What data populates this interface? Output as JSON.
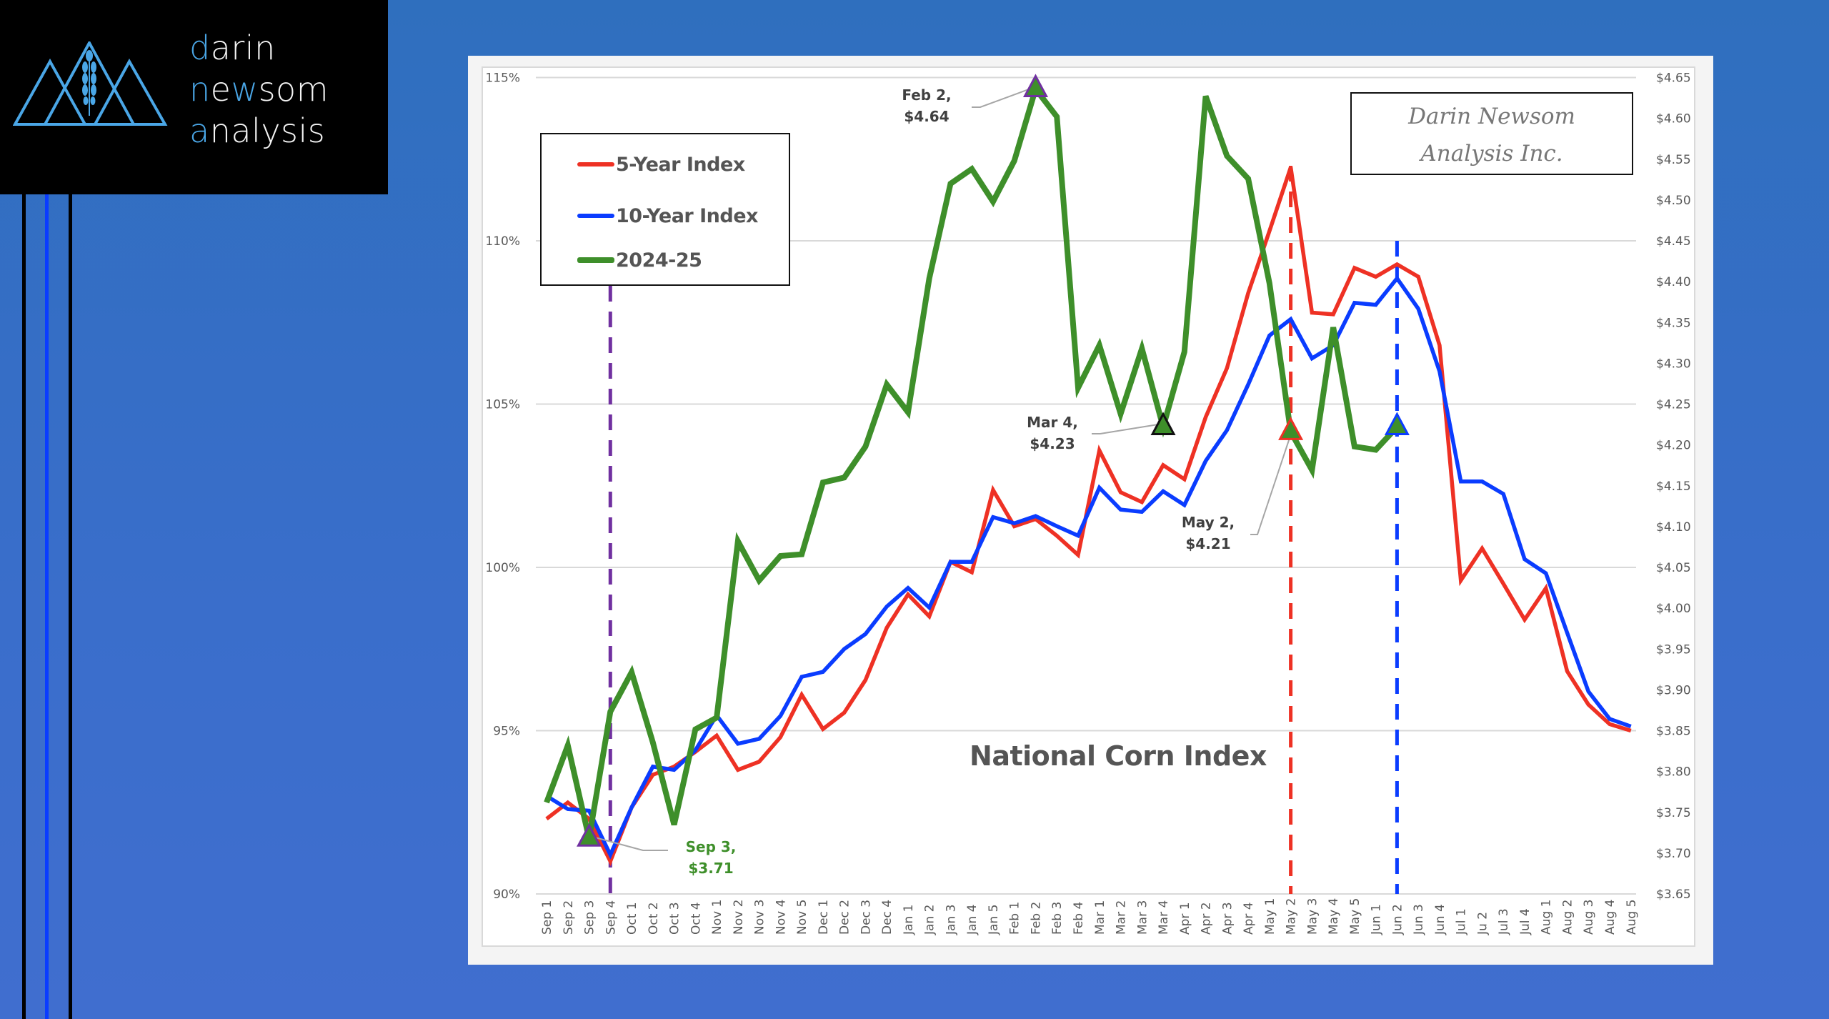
{
  "logo": {
    "line1": {
      "accent": "d",
      "rest": "arin"
    },
    "line2": {
      "accent1": "n",
      "mid1": "e",
      "accent2": "w",
      "rest": "som"
    },
    "line3": {
      "accent": "a",
      "rest": "nalysis"
    },
    "colors": {
      "accent": "#4aa6e6",
      "text": "#f4f4f4",
      "background": "#000000"
    }
  },
  "decor": {
    "stripe_colors": [
      "#000000",
      "#0a3cff",
      "#000000"
    ]
  },
  "brand_box": {
    "line1": "Darin Newsom",
    "line2": "Analysis Inc."
  },
  "chart_data": {
    "type": "line",
    "title": "National Corn Index",
    "xlabel": "",
    "ylabel": "",
    "categories": [
      "Sep 1",
      "Sep 2",
      "Sep 3",
      "Sep 4",
      "Oct 1",
      "Oct 2",
      "Oct 3",
      "Oct 4",
      "Nov 1",
      "Nov 2",
      "Nov 3",
      "Nov 4",
      "Nov 5",
      "Dec 1",
      "Dec 2",
      "Dec 3",
      "Dec 4",
      "Jan 1",
      "Jan 2",
      "Jan 3",
      "Jan 4",
      "Jan 5",
      "Feb 1",
      "Feb 2",
      "Feb 3",
      "Feb 4",
      "Mar 1",
      "Mar 2",
      "Mar 3",
      "Mar 4",
      "Apr 1",
      "Apr 2",
      "Apr 3",
      "Apr 4",
      "May 1",
      "May 2",
      "May 3",
      "May 4",
      "May 5",
      "Jun 1",
      "Jun 2",
      "Jun 3",
      "Jun 4",
      "Jul 1",
      "Ju 2",
      "Jul 3",
      "Jul 4",
      "Aug 1",
      "Aug 2",
      "Aug 3",
      "Aug 4",
      "Aug 5"
    ],
    "y_left": {
      "min": 90,
      "max": 115,
      "step": 5,
      "ticks": [
        "90%",
        "95%",
        "100%",
        "105%",
        "110%",
        "115%"
      ]
    },
    "y_right": {
      "min": 3.65,
      "max": 4.65,
      "step": 0.05,
      "ticks": [
        "$3.65",
        "$3.70",
        "$3.75",
        "$3.80",
        "$3.85",
        "$3.90",
        "$3.95",
        "$4.00",
        "$4.05",
        "$4.10",
        "$4.15",
        "$4.20",
        "$4.25",
        "$4.30",
        "$4.35",
        "$4.40",
        "$4.45",
        "$4.50",
        "$4.55",
        "$4.60",
        "$4.65"
      ]
    },
    "grid": true,
    "legend_position": "top-left",
    "series": [
      {
        "name": "5-Year Index",
        "color": "#ee3124",
        "values": [
          92.3,
          92.8,
          92.3,
          91.0,
          92.65,
          93.65,
          93.9,
          94.35,
          94.85,
          93.8,
          94.05,
          94.8,
          96.1,
          95.05,
          95.55,
          96.55,
          98.15,
          99.17,
          98.5,
          100.17,
          99.85,
          102.37,
          101.26,
          101.48,
          100.97,
          100.38,
          103.58,
          102.3,
          102.0,
          103.13,
          102.7,
          104.6,
          106.1,
          108.4,
          110.3,
          112.25,
          107.8,
          107.75,
          109.17,
          108.9,
          109.28,
          108.9,
          106.8,
          99.6,
          100.58,
          99.5,
          98.4,
          99.36,
          96.82,
          95.8,
          95.2,
          95.0
        ]
      },
      {
        "name": "10-Year Index",
        "color": "#0a3cff",
        "values": [
          93.0,
          92.6,
          92.55,
          91.2,
          92.65,
          93.9,
          93.8,
          94.4,
          95.47,
          94.6,
          94.75,
          95.45,
          96.65,
          96.8,
          97.5,
          97.96,
          98.8,
          99.37,
          98.77,
          100.17,
          100.17,
          101.54,
          101.35,
          101.57,
          101.26,
          100.97,
          102.44,
          101.77,
          101.7,
          102.33,
          101.91,
          103.26,
          104.2,
          105.6,
          107.1,
          107.6,
          106.4,
          106.8,
          108.1,
          108.04,
          108.85,
          107.92,
          106.0,
          102.63,
          102.63,
          102.25,
          100.25,
          99.82,
          98.0,
          96.2,
          95.36,
          95.13
        ]
      },
      {
        "name": "2024-25",
        "color": "#3e8f2a",
        "values": [
          92.8,
          94.55,
          91.7,
          95.58,
          96.79,
          94.64,
          92.12,
          95.04,
          95.4,
          100.8,
          99.6,
          100.35,
          100.4,
          102.6,
          102.75,
          103.7,
          105.6,
          104.75,
          108.85,
          111.75,
          112.2,
          111.2,
          112.45,
          114.65,
          113.8,
          105.5,
          106.8,
          104.7,
          106.7,
          104.3,
          106.6,
          114.43,
          112.6,
          111.9,
          108.7,
          104.15,
          102.98,
          107.35,
          103.7,
          103.6,
          104.3
        ]
      }
    ],
    "vertical_markers": [
      {
        "category": "Sep 4",
        "color": "#7030a0",
        "style": "dashed"
      },
      {
        "category": "May 2",
        "color": "#ee3124",
        "style": "dashed"
      },
      {
        "category": "Jun 2",
        "color": "#0a3cff",
        "style": "dashed"
      }
    ],
    "markers": [
      {
        "category": "Sep 3",
        "series": "2024-25",
        "outline": "#7030a0"
      },
      {
        "category": "Feb 2",
        "series": "2024-25",
        "outline": "#7030a0"
      },
      {
        "category": "Mar 4",
        "series": "2024-25",
        "outline": "#111111"
      },
      {
        "category": "May 2",
        "series": "2024-25",
        "outline": "#ee3124"
      },
      {
        "category": "Jun 2",
        "series": "2024-25",
        "outline": "#0a3cff"
      }
    ],
    "annotations": [
      {
        "id": "sep3",
        "line1": "Sep 3,",
        "line2": "$3.71",
        "color": "green"
      },
      {
        "id": "feb2",
        "line1": "Feb 2,",
        "line2": "$4.64",
        "color": "gray"
      },
      {
        "id": "mar4",
        "line1": "Mar 4,",
        "line2": "$4.23",
        "color": "gray"
      },
      {
        "id": "may2",
        "line1": "May 2,",
        "line2": "$4.21",
        "color": "gray"
      }
    ]
  }
}
